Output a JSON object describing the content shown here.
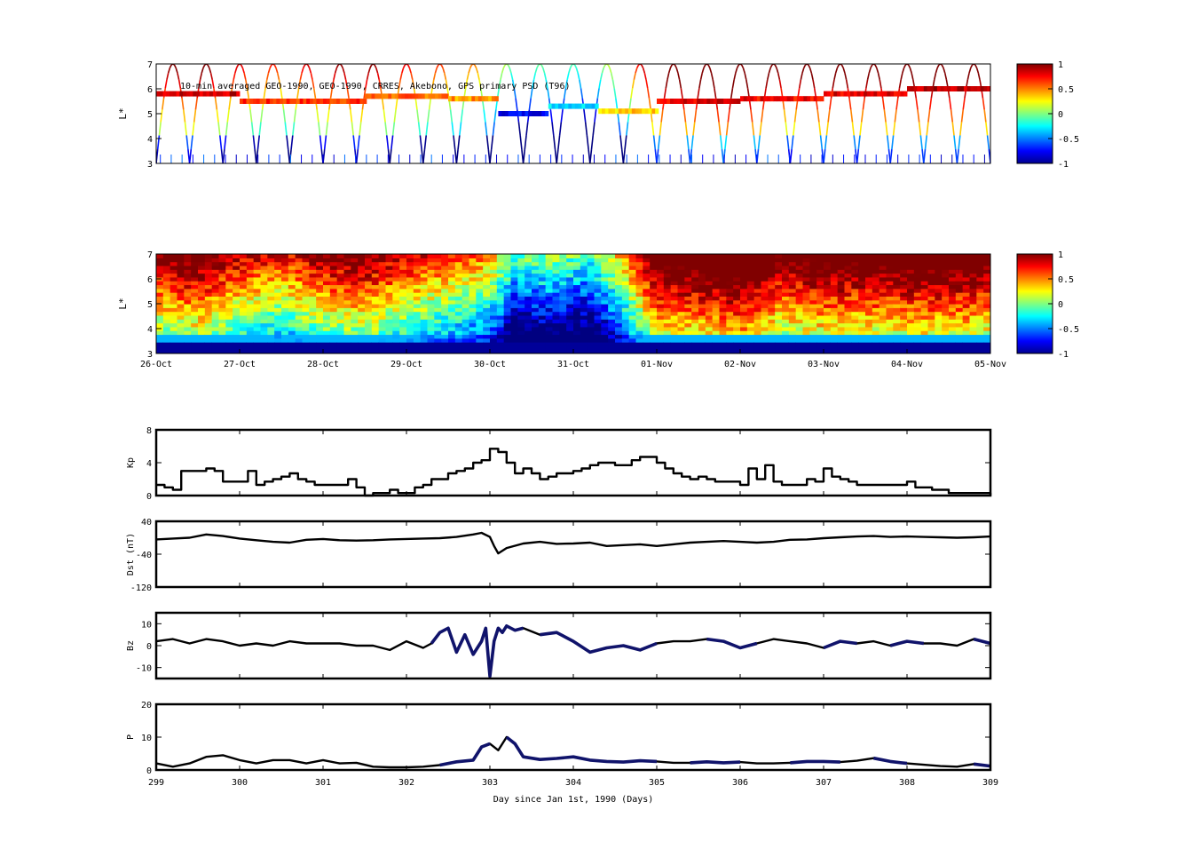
{
  "title": "10-min averaged GEO-1990, GEO-1990, CRRES, Akebono, GPS  primary PSD (T96)",
  "top_axis": {
    "ylabel": "L*",
    "yticks": [
      "3",
      "4",
      "5",
      "6",
      "7"
    ],
    "xticks": [
      "26-Oct",
      "27-Oct",
      "28-Oct",
      "29-Oct",
      "30-Oct",
      "31-Oct",
      "01-Nov",
      "02-Nov",
      "03-Nov",
      "04-Nov",
      "05-Nov"
    ]
  },
  "colorbar": {
    "ticks": [
      "1",
      "0.5",
      "0",
      "-0.5",
      "-1"
    ]
  },
  "bottom_axis": {
    "xlabel": "Day since Jan 1st, 1990 (Days)",
    "xticks": [
      "299",
      "300",
      "301",
      "302",
      "303",
      "304",
      "305",
      "306",
      "307",
      "308",
      "309"
    ]
  },
  "chart_data": [
    {
      "type": "heatmap",
      "panel": "observed-psd-scatter",
      "ylabel": "L*",
      "xlim": [
        299,
        309
      ],
      "ylim": [
        3,
        7
      ],
      "colorbar_range": [
        -1,
        1
      ],
      "colormap": "jet",
      "orbit_traces_per_day": 2.5,
      "geo_band": [
        {
          "start": 299.0,
          "end": 300.0,
          "L": 5.8,
          "v": 0.85
        },
        {
          "start": 300.0,
          "end": 301.5,
          "L": 5.5,
          "v": 0.65
        },
        {
          "start": 301.5,
          "end": 302.5,
          "L": 5.7,
          "v": 0.55
        },
        {
          "start": 302.5,
          "end": 303.1,
          "L": 5.6,
          "v": 0.45
        },
        {
          "start": 303.1,
          "end": 303.7,
          "L": 5.0,
          "v": -0.75
        },
        {
          "start": 303.7,
          "end": 304.3,
          "L": 5.3,
          "v": -0.3
        },
        {
          "start": 304.3,
          "end": 305.0,
          "L": 5.1,
          "v": 0.35
        },
        {
          "start": 305.0,
          "end": 306.0,
          "L": 5.5,
          "v": 0.8
        },
        {
          "start": 306.0,
          "end": 307.0,
          "L": 5.6,
          "v": 0.75
        },
        {
          "start": 307.0,
          "end": 308.0,
          "L": 5.8,
          "v": 0.8
        },
        {
          "start": 308.0,
          "end": 309.0,
          "L": 6.0,
          "v": 0.9
        }
      ]
    },
    {
      "type": "heatmap",
      "panel": "model-psd",
      "ylabel": "L*",
      "xlim": [
        299,
        309
      ],
      "ylim": [
        3,
        7
      ],
      "colorbar_range": [
        -1,
        1
      ],
      "colormap": "jet",
      "daily_level": [
        {
          "day": 299.0,
          "v": 0.3
        },
        {
          "day": 299.5,
          "v": 0.45
        },
        {
          "day": 300.0,
          "v": 0.15
        },
        {
          "day": 300.5,
          "v": 0.0
        },
        {
          "day": 301.0,
          "v": 0.25
        },
        {
          "day": 301.5,
          "v": 0.35
        },
        {
          "day": 302.0,
          "v": 0.1
        },
        {
          "day": 302.5,
          "v": -0.05
        },
        {
          "day": 303.0,
          "v": -0.25
        },
        {
          "day": 303.3,
          "v": -0.8
        },
        {
          "day": 303.7,
          "v": -0.7
        },
        {
          "day": 304.2,
          "v": -0.85
        },
        {
          "day": 304.6,
          "v": -0.3
        },
        {
          "day": 305.0,
          "v": 0.55
        },
        {
          "day": 305.5,
          "v": 0.6
        },
        {
          "day": 306.0,
          "v": 0.75
        },
        {
          "day": 306.5,
          "v": 0.4
        },
        {
          "day": 307.0,
          "v": 0.55
        },
        {
          "day": 307.5,
          "v": 0.5
        },
        {
          "day": 308.0,
          "v": 0.55
        },
        {
          "day": 308.5,
          "v": 0.6
        },
        {
          "day": 309.0,
          "v": 0.5
        }
      ]
    },
    {
      "type": "line",
      "panel": "kp",
      "ylabel": "Kp",
      "xlim": [
        299,
        309
      ],
      "ylim": [
        0,
        8
      ],
      "yticks": [
        "0",
        "4",
        "8"
      ],
      "x": [
        299.0,
        299.1,
        299.2,
        299.3,
        299.4,
        299.5,
        299.6,
        299.7,
        299.8,
        299.9,
        300.0,
        300.1,
        300.2,
        300.3,
        300.4,
        300.5,
        300.6,
        300.7,
        300.8,
        300.9,
        301.0,
        301.1,
        301.2,
        301.3,
        301.4,
        301.5,
        301.6,
        301.7,
        301.8,
        301.9,
        302.0,
        302.1,
        302.2,
        302.3,
        302.4,
        302.5,
        302.6,
        302.7,
        302.8,
        302.9,
        303.0,
        303.1,
        303.2,
        303.3,
        303.4,
        303.5,
        303.6,
        303.7,
        303.8,
        303.9,
        304.0,
        304.1,
        304.2,
        304.3,
        304.4,
        304.5,
        304.6,
        304.7,
        304.8,
        304.9,
        305.0,
        305.1,
        305.2,
        305.3,
        305.4,
        305.5,
        305.6,
        305.7,
        305.8,
        305.9,
        306.0,
        306.1,
        306.2,
        306.3,
        306.4,
        306.5,
        306.6,
        306.7,
        306.8,
        306.9,
        307.0,
        307.1,
        307.2,
        307.3,
        307.4,
        307.5,
        307.6,
        307.7,
        307.8,
        307.9,
        308.0,
        308.1,
        308.2,
        308.3,
        308.4,
        308.5,
        308.6,
        308.7,
        308.8,
        308.9,
        309.0
      ],
      "values": [
        1.3,
        1.0,
        0.7,
        3.0,
        3.0,
        3.0,
        3.3,
        3.0,
        1.7,
        1.7,
        1.7,
        3.0,
        1.3,
        1.7,
        2.0,
        2.3,
        2.7,
        2.0,
        1.7,
        1.3,
        1.3,
        1.3,
        1.3,
        2.0,
        1.0,
        0.0,
        0.3,
        0.3,
        0.7,
        0.3,
        0.3,
        1.0,
        1.3,
        2.0,
        2.0,
        2.7,
        3.0,
        3.3,
        4.0,
        4.3,
        5.7,
        5.3,
        4.0,
        2.7,
        3.3,
        2.7,
        2.0,
        2.3,
        2.7,
        2.7,
        3.0,
        3.3,
        3.7,
        4.0,
        4.0,
        3.7,
        3.7,
        4.3,
        4.7,
        4.7,
        4.0,
        3.3,
        2.7,
        2.3,
        2.0,
        2.3,
        2.0,
        1.7,
        1.7,
        1.7,
        1.3,
        3.3,
        2.0,
        3.7,
        1.7,
        1.3,
        1.3,
        1.3,
        2.0,
        1.7,
        3.3,
        2.3,
        2.0,
        1.7,
        1.3,
        1.3,
        1.3,
        1.3,
        1.3,
        1.3,
        1.7,
        1.0,
        1.0,
        0.7,
        0.7,
        0.3,
        0.3,
        0.3,
        0.3,
        0.3,
        0.0
      ]
    },
    {
      "type": "line",
      "panel": "dst",
      "ylabel": "Dst (nT)",
      "xlim": [
        299,
        309
      ],
      "ylim": [
        -120,
        40
      ],
      "yticks": [
        "-120",
        "-40",
        "40"
      ],
      "x": [
        299.0,
        299.2,
        299.4,
        299.6,
        299.8,
        300.0,
        300.2,
        300.4,
        300.6,
        300.8,
        301.0,
        301.2,
        301.4,
        301.6,
        301.8,
        302.0,
        302.2,
        302.4,
        302.6,
        302.8,
        302.9,
        303.0,
        303.05,
        303.1,
        303.2,
        303.4,
        303.6,
        303.8,
        304.0,
        304.2,
        304.4,
        304.6,
        304.8,
        305.0,
        305.2,
        305.4,
        305.6,
        305.8,
        306.0,
        306.2,
        306.4,
        306.6,
        306.8,
        307.0,
        307.2,
        307.4,
        307.6,
        307.8,
        308.0,
        308.2,
        308.4,
        308.6,
        308.8,
        309.0
      ],
      "values": [
        -4,
        -2,
        0,
        8,
        4,
        -2,
        -6,
        -10,
        -12,
        -5,
        -3,
        -6,
        -7,
        -6,
        -4,
        -3,
        -2,
        -1,
        2,
        8,
        12,
        2,
        -20,
        -38,
        -25,
        -14,
        -10,
        -15,
        -14,
        -12,
        -20,
        -18,
        -16,
        -20,
        -16,
        -12,
        -10,
        -8,
        -10,
        -12,
        -10,
        -5,
        -4,
        -1,
        1,
        3,
        4,
        2,
        3,
        2,
        1,
        0,
        1,
        3
      ]
    },
    {
      "type": "line",
      "panel": "bz",
      "ylabel": "Bz",
      "xlim": [
        299,
        309
      ],
      "ylim": [
        -15,
        15
      ],
      "yticks": [
        "-10",
        "0",
        "10"
      ],
      "x": [
        299.0,
        299.2,
        299.4,
        299.6,
        299.8,
        300.0,
        300.2,
        300.4,
        300.6,
        300.8,
        301.0,
        301.2,
        301.4,
        301.6,
        301.8,
        302.0,
        302.2,
        302.3,
        302.4,
        302.5,
        302.6,
        302.7,
        302.8,
        302.9,
        302.95,
        303.0,
        303.05,
        303.1,
        303.15,
        303.2,
        303.3,
        303.4,
        303.6,
        303.8,
        304.0,
        304.2,
        304.4,
        304.6,
        304.8,
        305.0,
        305.2,
        305.4,
        305.6,
        305.8,
        306.0,
        306.2,
        306.4,
        306.6,
        306.8,
        307.0,
        307.2,
        307.4,
        307.6,
        307.8,
        308.0,
        308.2,
        308.4,
        308.6,
        308.8,
        309.0
      ],
      "values": [
        2,
        3,
        1,
        3,
        2,
        0,
        1,
        0,
        2,
        1,
        1,
        1,
        0,
        0,
        -2,
        2,
        -1,
        1,
        6,
        8,
        -3,
        5,
        -4,
        2,
        8,
        -14,
        2,
        8,
        6,
        9,
        7,
        8,
        5,
        6,
        2,
        -3,
        -1,
        0,
        -2,
        1,
        2,
        2,
        3,
        2,
        -1,
        1,
        3,
        2,
        1,
        -1,
        2,
        1,
        2,
        0,
        2,
        1,
        1,
        0,
        3,
        1
      ]
    },
    {
      "type": "line",
      "panel": "p",
      "ylabel": "P",
      "xlim": [
        299,
        309
      ],
      "ylim": [
        0,
        20
      ],
      "yticks": [
        "0",
        "10",
        "20"
      ],
      "x": [
        299.0,
        299.2,
        299.4,
        299.6,
        299.8,
        300.0,
        300.2,
        300.4,
        300.6,
        300.8,
        301.0,
        301.2,
        301.4,
        301.6,
        301.8,
        302.0,
        302.2,
        302.4,
        302.6,
        302.8,
        302.9,
        303.0,
        303.1,
        303.2,
        303.3,
        303.4,
        303.6,
        303.8,
        304.0,
        304.2,
        304.4,
        304.6,
        304.8,
        305.0,
        305.2,
        305.4,
        305.6,
        305.8,
        306.0,
        306.2,
        306.4,
        306.6,
        306.8,
        307.0,
        307.2,
        307.4,
        307.6,
        307.8,
        308.0,
        308.2,
        308.4,
        308.6,
        308.8,
        309.0
      ],
      "values": [
        2,
        1,
        2,
        4,
        4.5,
        3,
        2,
        3,
        3,
        2,
        3,
        2,
        2.2,
        1,
        0.8,
        0.8,
        1,
        1.5,
        2.5,
        3,
        7,
        8,
        6,
        10,
        8,
        4,
        3.2,
        3.5,
        4,
        3,
        2.6,
        2.4,
        2.8,
        2.6,
        2.2,
        2.2,
        2.5,
        2.2,
        2.4,
        2.0,
        2.0,
        2.2,
        2.6,
        2.6,
        2.4,
        2.8,
        3.6,
        2.6,
        2.0,
        1.6,
        1.2,
        1.0,
        1.8,
        1.2
      ]
    }
  ]
}
